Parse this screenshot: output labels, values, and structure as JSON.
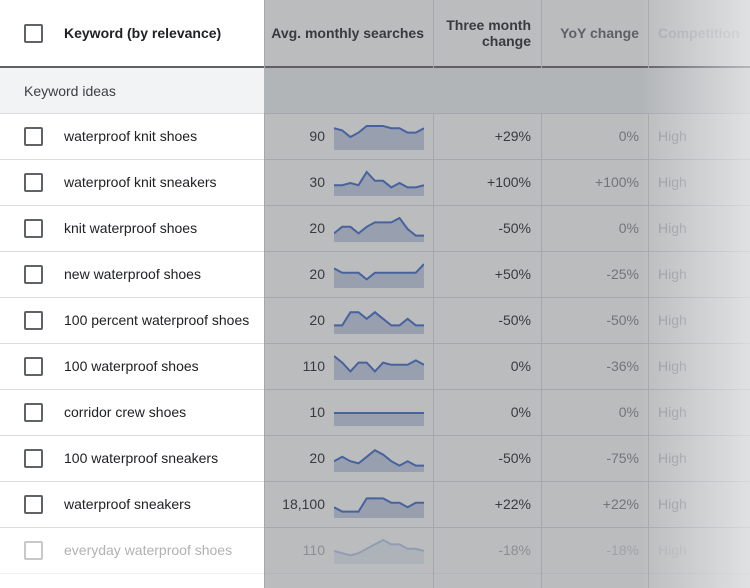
{
  "colors": {
    "spark_line": "#3c64c8",
    "spark_fill": "#c5cfe6",
    "overlay": "#5a5f64"
  },
  "header": {
    "keyword_col": "Keyword (by relevance)",
    "avg_col": "Avg. monthly searches",
    "three_month_col": "Three month change",
    "yoy_col": "YoY change",
    "competition_col": "Competition"
  },
  "section_label": "Keyword ideas",
  "rows": [
    {
      "keyword": "waterproof knit shoes",
      "avg": "90",
      "three_month": "+29%",
      "yoy": "0%",
      "competition": "High",
      "trend": [
        9,
        8,
        5,
        7,
        10,
        10,
        10,
        9,
        9,
        7,
        7,
        9
      ]
    },
    {
      "keyword": "waterproof knit sneakers",
      "avg": "30",
      "three_month": "+100%",
      "yoy": "+100%",
      "competition": "High",
      "trend": [
        4,
        4,
        5,
        4,
        10,
        6,
        6,
        3,
        5,
        3,
        3,
        4
      ]
    },
    {
      "keyword": "knit waterproof shoes",
      "avg": "20",
      "three_month": "-50%",
      "yoy": "0%",
      "competition": "High",
      "trend": [
        3,
        6,
        6,
        3,
        6,
        8,
        8,
        8,
        10,
        5,
        2,
        2
      ]
    },
    {
      "keyword": "new waterproof shoes",
      "avg": "20",
      "three_month": "+50%",
      "yoy": "-25%",
      "competition": "High",
      "trend": [
        8,
        6,
        6,
        6,
        3,
        6,
        6,
        6,
        6,
        6,
        6,
        10
      ]
    },
    {
      "keyword": "100 percent waterproof shoes",
      "avg": "20",
      "three_month": "-50%",
      "yoy": "-50%",
      "competition": "High",
      "trend": [
        3,
        3,
        9,
        9,
        6,
        9,
        6,
        3,
        3,
        6,
        3,
        3
      ]
    },
    {
      "keyword": "100 waterproof shoes",
      "avg": "110",
      "three_month": "0%",
      "yoy": "-36%",
      "competition": "High",
      "trend": [
        10,
        7,
        3,
        7,
        7,
        3,
        7,
        6,
        6,
        6,
        8,
        6
      ]
    },
    {
      "keyword": "corridor crew shoes",
      "avg": "10",
      "three_month": "0%",
      "yoy": "0%",
      "competition": "High",
      "trend": [
        5,
        5,
        5,
        5,
        5,
        5,
        5,
        5,
        5,
        5,
        5,
        5
      ]
    },
    {
      "keyword": "100 waterproof sneakers",
      "avg": "20",
      "three_month": "-50%",
      "yoy": "-75%",
      "competition": "High",
      "trend": [
        4,
        6,
        4,
        3,
        6,
        9,
        7,
        4,
        2,
        4,
        2,
        2
      ]
    },
    {
      "keyword": "waterproof sneakers",
      "avg": "18,100",
      "three_month": "+22%",
      "yoy": "+22%",
      "competition": "High",
      "trend": [
        4,
        2,
        2,
        2,
        8,
        8,
        8,
        6,
        6,
        4,
        6,
        6
      ]
    },
    {
      "keyword": "everyday waterproof shoes",
      "avg": "110",
      "three_month": "-18%",
      "yoy": "-18%",
      "competition": "High",
      "trend": [
        5,
        4,
        3,
        4,
        6,
        8,
        10,
        8,
        8,
        6,
        6,
        5
      ]
    }
  ]
}
